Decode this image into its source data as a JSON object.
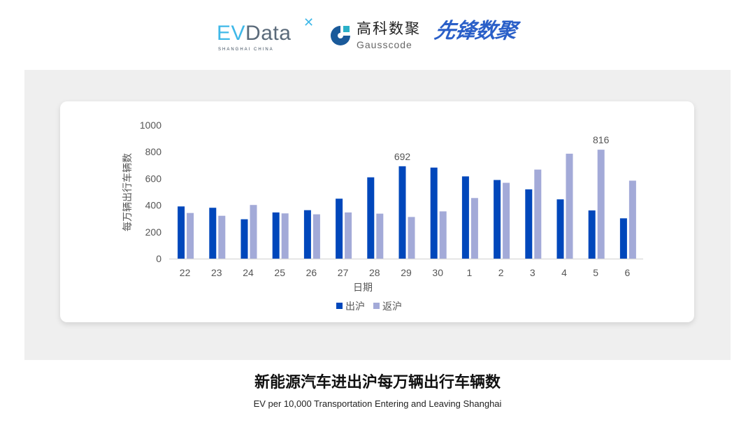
{
  "logos": {
    "evdata": {
      "ev": "EV",
      "rest": "Data",
      "sub": "SHANGHAI CHINA"
    },
    "gausscode": {
      "cn": "高科数聚",
      "en": "Gausscode"
    },
    "xianfeng": "先锋数聚"
  },
  "colors": {
    "out": "#0047bb",
    "back": "#a3aad8",
    "panel": "#efefef"
  },
  "chart_data": {
    "type": "bar",
    "categories": [
      "22",
      "23",
      "24",
      "25",
      "26",
      "27",
      "28",
      "29",
      "30",
      "1",
      "2",
      "3",
      "4",
      "5",
      "6"
    ],
    "series": [
      {
        "name": "出沪",
        "values": [
          391,
          381,
          295,
          346,
          363,
          449,
          609,
          692,
          682,
          616,
          589,
          519,
          444,
          361,
          302
        ]
      },
      {
        "name": "返沪",
        "values": [
          342,
          321,
          402,
          339,
          332,
          346,
          337,
          312,
          354,
          454,
          568,
          667,
          786,
          816,
          584
        ]
      }
    ],
    "annotations": [
      {
        "series": "出沪",
        "category": "29",
        "text": "692"
      },
      {
        "series": "返沪",
        "category": "5",
        "text": "816"
      }
    ],
    "xlabel": "日期",
    "ylabel": "每万辆出行车辆数",
    "ylim": [
      0,
      1000
    ],
    "yticks": [
      "0",
      "200",
      "400",
      "600",
      "800",
      "1000"
    ],
    "grid": false,
    "legend": "bottom"
  },
  "caption": {
    "title": "新能源汽车进出沪每万辆出行车辆数",
    "subtitle": "EV per 10,000 Transportation Entering and Leaving Shanghai"
  }
}
